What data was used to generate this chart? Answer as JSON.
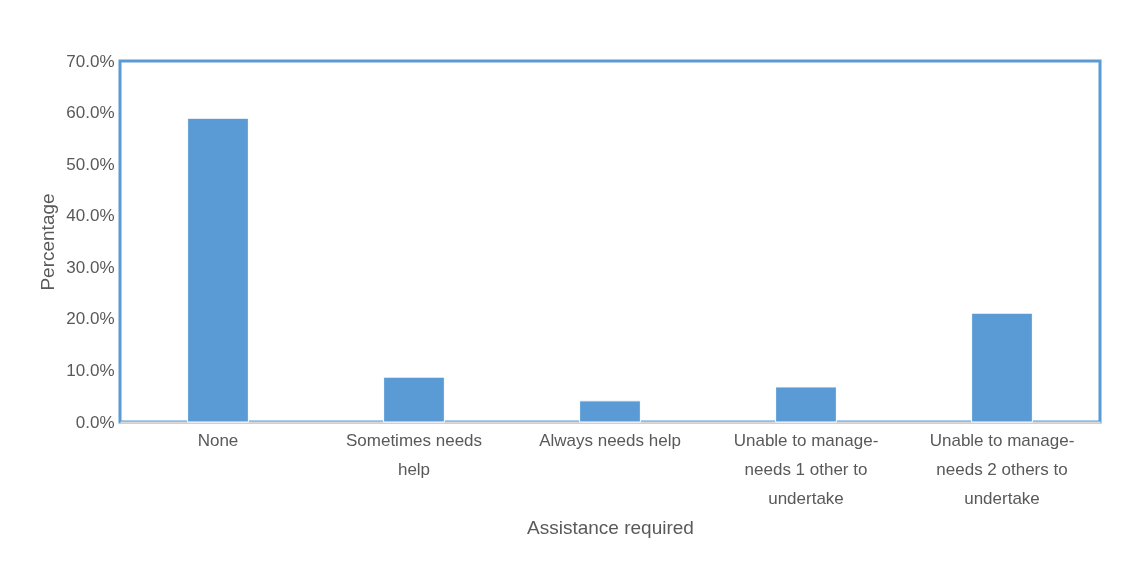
{
  "chart_data": {
    "type": "bar",
    "xlabel": "Assistance required",
    "ylabel": "Percentage",
    "categories": [
      "None",
      "Sometimes needs help",
      "Always needs help",
      "Unable to manage- needs 1 other to undertake",
      "Unable to manage- needs 2 others to undertake"
    ],
    "values": [
      58.9,
      8.7,
      4.1,
      6.8,
      21.1
    ],
    "color": "#5b9bd5",
    "ylim": [
      0,
      70
    ],
    "yticks": [
      {
        "value": 0,
        "label": "0.0%"
      },
      {
        "value": 10,
        "label": "10.0%"
      },
      {
        "value": 20,
        "label": "20.0%"
      },
      {
        "value": 30,
        "label": "30.0%"
      },
      {
        "value": 40,
        "label": "40.0%"
      },
      {
        "value": 50,
        "label": "50.0%"
      },
      {
        "value": 60,
        "label": "60.0%"
      },
      {
        "value": 70,
        "label": "70.0%"
      }
    ],
    "grid": false
  }
}
